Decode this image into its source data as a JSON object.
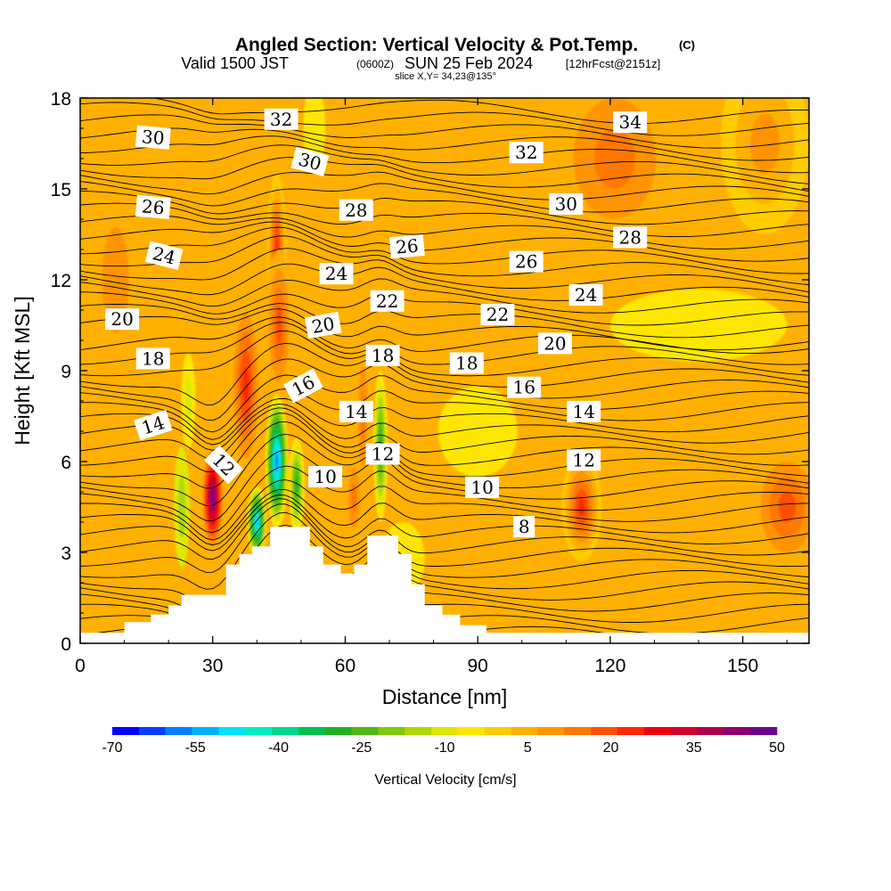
{
  "title": {
    "main": "Angled Section: Vertical Velocity & Pot.Temp.",
    "main_unit": "(C)",
    "valid_a": "Valid 1500 JST",
    "valid_zone": "(0600Z)",
    "valid_b": "SUN 25 Feb 2024",
    "valid_fcst": "[12hrFcst@2151z]",
    "slice": "slice X,Y= 34,23@135°"
  },
  "chart_data": {
    "type": "heatmap",
    "xlabel": "Distance [nm]",
    "ylabel": "Height [Kft MSL]",
    "xlim": [
      0,
      165
    ],
    "ylim": [
      0,
      18
    ],
    "x_ticks": [
      "0",
      "30",
      "60",
      "90",
      "120",
      "150"
    ],
    "y_ticks": [
      "0",
      "3",
      "6",
      "9",
      "12",
      "15",
      "18"
    ],
    "grid": false,
    "terrain_profile_kft": [
      [
        0,
        0.35
      ],
      [
        10,
        0.35
      ],
      [
        10,
        0.7
      ],
      [
        16,
        0.7
      ],
      [
        16,
        0.95
      ],
      [
        20,
        0.95
      ],
      [
        20,
        1.25
      ],
      [
        23,
        1.25
      ],
      [
        23,
        1.6
      ],
      [
        33,
        1.6
      ],
      [
        33,
        2.6
      ],
      [
        36,
        2.6
      ],
      [
        36,
        2.95
      ],
      [
        39,
        2.95
      ],
      [
        39,
        3.2
      ],
      [
        43,
        3.2
      ],
      [
        43,
        3.85
      ],
      [
        52,
        3.85
      ],
      [
        52,
        3.2
      ],
      [
        55,
        3.2
      ],
      [
        55,
        2.6
      ],
      [
        59,
        2.6
      ],
      [
        59,
        2.3
      ],
      [
        62,
        2.3
      ],
      [
        62,
        2.6
      ],
      [
        65,
        2.6
      ],
      [
        65,
        3.55
      ],
      [
        72,
        3.55
      ],
      [
        72,
        2.95
      ],
      [
        75,
        2.95
      ],
      [
        75,
        1.95
      ],
      [
        78,
        1.95
      ],
      [
        78,
        1.25
      ],
      [
        82,
        1.25
      ],
      [
        82,
        0.95
      ],
      [
        86,
        0.95
      ],
      [
        86,
        0.6
      ],
      [
        92,
        0.6
      ],
      [
        92,
        0.35
      ],
      [
        165,
        0.35
      ]
    ],
    "theta_contour_labels": [
      {
        "value": "30",
        "x": 16.5,
        "y": 16.7,
        "angle": 5
      },
      {
        "value": "26",
        "x": 16.5,
        "y": 14.4,
        "angle": 5
      },
      {
        "value": "24",
        "x": 19,
        "y": 12.8,
        "angle": 14
      },
      {
        "value": "20",
        "x": 9.5,
        "y": 10.7,
        "angle": 0
      },
      {
        "value": "18",
        "x": 16.5,
        "y": 9.4,
        "angle": 0
      },
      {
        "value": "14",
        "x": 16.5,
        "y": 7.2,
        "angle": -18
      },
      {
        "value": "12",
        "x": 32.5,
        "y": 5.9,
        "angle": 45
      },
      {
        "value": "32",
        "x": 45.5,
        "y": 17.3,
        "angle": 0
      },
      {
        "value": "30",
        "x": 52,
        "y": 15.9,
        "angle": 15
      },
      {
        "value": "28",
        "x": 62.5,
        "y": 14.3,
        "angle": 0
      },
      {
        "value": "24",
        "x": 58,
        "y": 12.2,
        "angle": 0
      },
      {
        "value": "20",
        "x": 55,
        "y": 10.5,
        "angle": -10
      },
      {
        "value": "16",
        "x": 50.5,
        "y": 8.5,
        "angle": -28
      },
      {
        "value": "10",
        "x": 55.5,
        "y": 5.5,
        "angle": 0
      },
      {
        "value": "26",
        "x": 74,
        "y": 13.1,
        "angle": -5
      },
      {
        "value": "22",
        "x": 69.5,
        "y": 11.3,
        "angle": 0
      },
      {
        "value": "18",
        "x": 68.5,
        "y": 9.5,
        "angle": 0
      },
      {
        "value": "14",
        "x": 62.5,
        "y": 7.65,
        "angle": 0
      },
      {
        "value": "12",
        "x": 68.5,
        "y": 6.25,
        "angle": 0
      },
      {
        "value": "18",
        "x": 87.5,
        "y": 9.25,
        "angle": 0
      },
      {
        "value": "22",
        "x": 94.5,
        "y": 10.85,
        "angle": 0
      },
      {
        "value": "26",
        "x": 101,
        "y": 12.6,
        "angle": 0
      },
      {
        "value": "32",
        "x": 101,
        "y": 16.2,
        "angle": 0
      },
      {
        "value": "30",
        "x": 110,
        "y": 14.5,
        "angle": 0
      },
      {
        "value": "34",
        "x": 124.5,
        "y": 17.2,
        "angle": 0
      },
      {
        "value": "28",
        "x": 124.5,
        "y": 13.4,
        "angle": 0
      },
      {
        "value": "24",
        "x": 114.5,
        "y": 11.5,
        "angle": 0
      },
      {
        "value": "20",
        "x": 107.5,
        "y": 9.9,
        "angle": 0
      },
      {
        "value": "16",
        "x": 100.5,
        "y": 8.45,
        "angle": 0
      },
      {
        "value": "14",
        "x": 114,
        "y": 7.65,
        "angle": 0
      },
      {
        "value": "12",
        "x": 114,
        "y": 6.05,
        "angle": 0
      },
      {
        "value": "10",
        "x": 91,
        "y": 5.15,
        "angle": 0
      },
      {
        "value": "8",
        "x": 100.5,
        "y": 3.85,
        "angle": 0
      }
    ],
    "velocity_features": [
      {
        "x": 30,
        "y": 4.8,
        "rx": 2.6,
        "ry": 1.8,
        "w": 50
      },
      {
        "x": 37.5,
        "y": 8.5,
        "rx": 3.5,
        "ry": 3.0,
        "w": 25
      },
      {
        "x": 44.5,
        "y": 13.0,
        "rx": 2.2,
        "ry": 2.5,
        "w": 28
      },
      {
        "x": 45,
        "y": 10.5,
        "rx": 3.0,
        "ry": 2.5,
        "w": 20
      },
      {
        "x": 44.5,
        "y": 6.0,
        "rx": 2.6,
        "ry": 2.2,
        "w": -60
      },
      {
        "x": 40,
        "y": 4.0,
        "rx": 2.2,
        "ry": 1.2,
        "w": -55
      },
      {
        "x": 49,
        "y": 5.2,
        "rx": 1.8,
        "ry": 1.6,
        "w": -30
      },
      {
        "x": 68,
        "y": 6.5,
        "rx": 1.6,
        "ry": 2.5,
        "w": -28
      },
      {
        "x": 64,
        "y": 7.5,
        "rx": 1.6,
        "ry": 2.5,
        "w": 17
      },
      {
        "x": 62,
        "y": 4.8,
        "rx": 2.0,
        "ry": 1.5,
        "w": 16
      },
      {
        "x": 113.5,
        "y": 4.5,
        "rx": 4.5,
        "ry": 1.8,
        "w": 28
      },
      {
        "x": 160,
        "y": 4.5,
        "rx": 8.0,
        "ry": 2.0,
        "w": 20
      },
      {
        "x": 121,
        "y": 16.0,
        "rx": 14.0,
        "ry": 3.0,
        "w": 15
      },
      {
        "x": 155,
        "y": 16.5,
        "rx": 10.0,
        "ry": 3.0,
        "w": 14
      },
      {
        "x": 8,
        "y": 12.0,
        "rx": 6.0,
        "ry": 3.5,
        "w": 12
      },
      {
        "x": 23,
        "y": 4.5,
        "rx": 1.8,
        "ry": 2.0,
        "w": -12
      },
      {
        "x": 24.5,
        "y": 8.0,
        "rx": 1.6,
        "ry": 1.6,
        "w": -10
      },
      {
        "x": 53,
        "y": 17.0,
        "rx": 2.5,
        "ry": 1.5,
        "w": -5
      },
      {
        "x": 73,
        "y": 2.8,
        "rx": 5.0,
        "ry": 1.2,
        "w": -4
      },
      {
        "x": 90,
        "y": 7.0,
        "rx": 9.0,
        "ry": 1.5,
        "w": -3
      },
      {
        "x": 140,
        "y": 10.5,
        "rx": 20.0,
        "ry": 1.2,
        "w": -2
      }
    ],
    "colorbar": {
      "title": "Vertical Velocity [cm/s]",
      "units": "cm/s",
      "min": -70,
      "max": 50,
      "step": 5,
      "tick_labels": [
        "-70",
        "-55",
        "-40",
        "-25",
        "-10",
        "5",
        "20",
        "35",
        "50"
      ],
      "colors": [
        "#0000ff",
        "#0040ff",
        "#0080ff",
        "#00b0ff",
        "#00e0ff",
        "#00eec0",
        "#00d890",
        "#00c050",
        "#20b020",
        "#50b818",
        "#80c810",
        "#b0d808",
        "#e0e800",
        "#ffe600",
        "#ffcc00",
        "#ffb000",
        "#ff9400",
        "#ff7800",
        "#ff5000",
        "#ff2800",
        "#ee0010",
        "#d00030",
        "#b00050",
        "#900070",
        "#700090"
      ]
    }
  }
}
